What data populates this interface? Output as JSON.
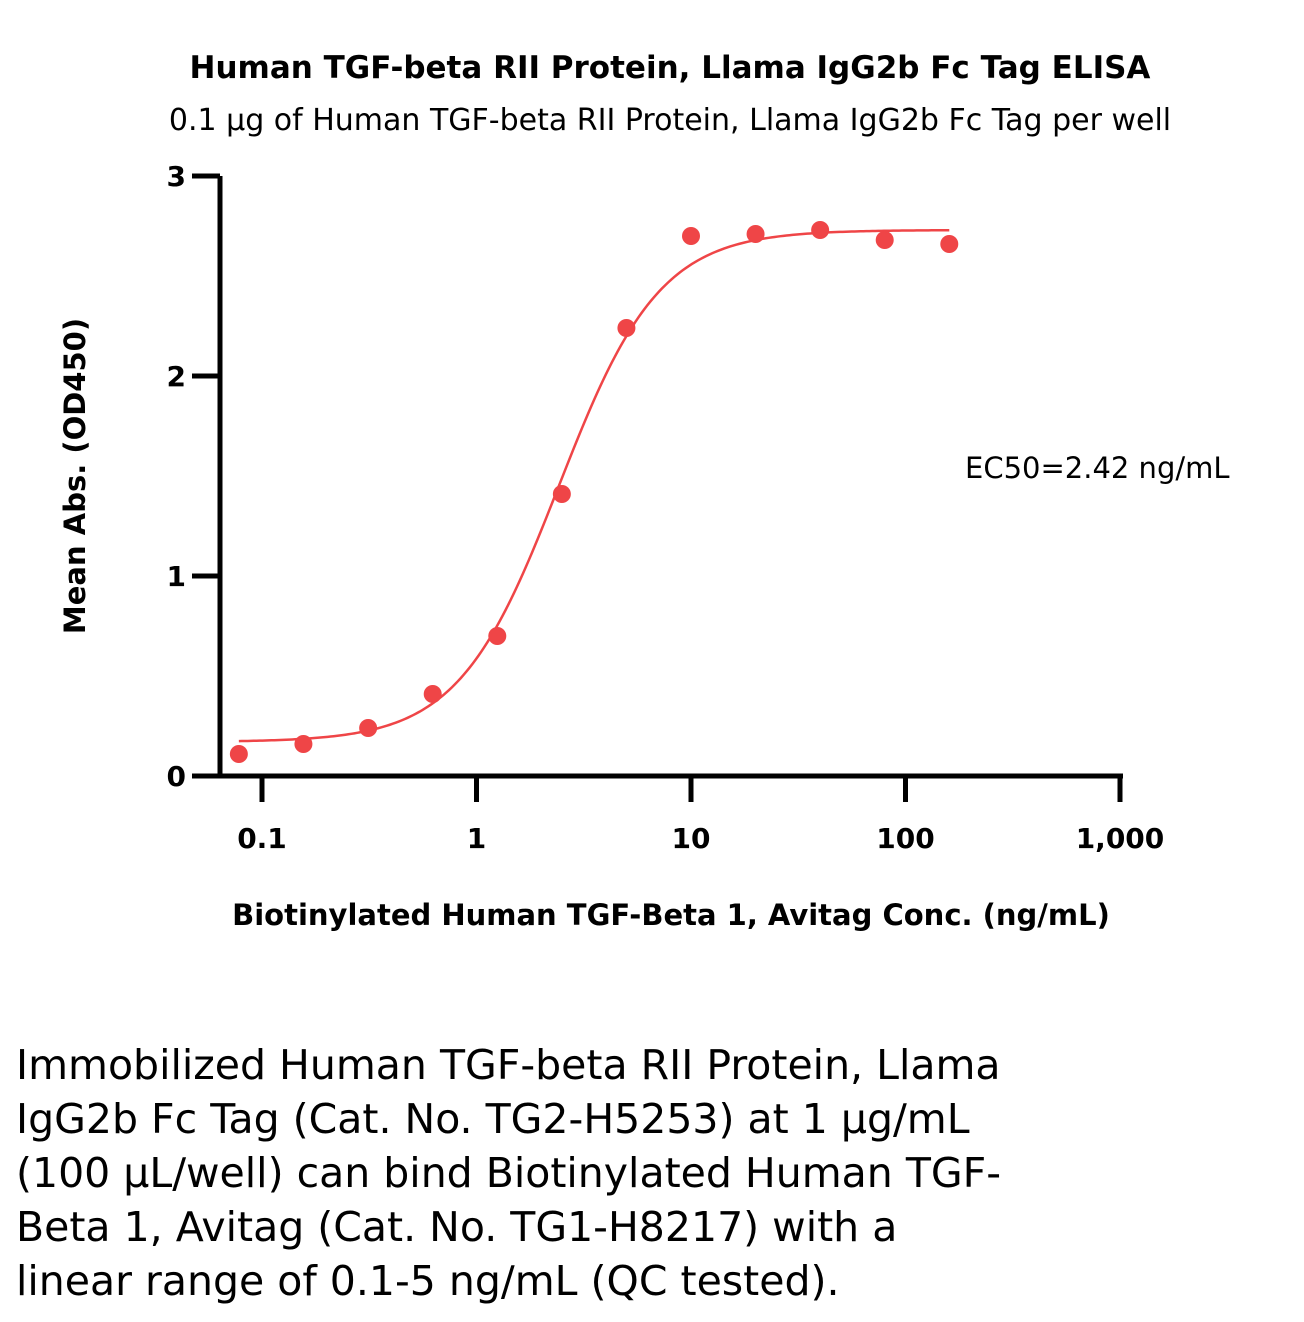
{
  "chart_data": {
    "type": "scatter",
    "title": "Human TGF-beta RII Protein, Llama IgG2b Fc Tag ELISA",
    "subtitle": "0.1 μg of Human TGF-beta RII Protein, Llama IgG2b Fc Tag per well",
    "xlabel": "Biotinylated Human TGF-Beta 1, Avitag Conc. (ng/mL)",
    "ylabel": "Mean Abs. (OD450)",
    "x_scale": "log",
    "xlim": [
      0.06,
      1000
    ],
    "ylim": [
      0,
      3
    ],
    "x_ticks": [
      0.1,
      1,
      10,
      100,
      1000
    ],
    "x_tick_labels": [
      "0.1",
      "1",
      "10",
      "100",
      "1,000"
    ],
    "y_ticks": [
      0,
      1,
      2,
      3
    ],
    "y_tick_labels": [
      "0",
      "1",
      "2",
      "3"
    ],
    "color": "#ef4547",
    "series": [
      {
        "x": [
          0.078,
          0.156,
          0.3125,
          0.625,
          1.25,
          2.5,
          5,
          10,
          20,
          40,
          80,
          160
        ],
        "y": [
          0.11,
          0.16,
          0.24,
          0.41,
          0.7,
          1.41,
          2.24,
          2.7,
          2.71,
          2.73,
          2.68,
          2.66
        ]
      }
    ],
    "fit": {
      "bottom": 0.17,
      "top": 2.73,
      "ec50": 2.42,
      "hill": 1.85,
      "x_range": [
        0.078,
        160
      ]
    },
    "annotation": "EC50=2.42 ng/mL",
    "grid": false,
    "legend": "none"
  },
  "caption_lines": [
    "Immobilized Human TGF-beta RII Protein, Llama",
    "IgG2b Fc Tag (Cat. No. TG2-H5253) at 1 μg/mL",
    "(100 μL/well) can bind Biotinylated Human TGF-",
    "Beta 1, Avitag (Cat. No. TG1-H8217) with a",
    "linear range of 0.1-5 ng/mL (QC tested)."
  ]
}
